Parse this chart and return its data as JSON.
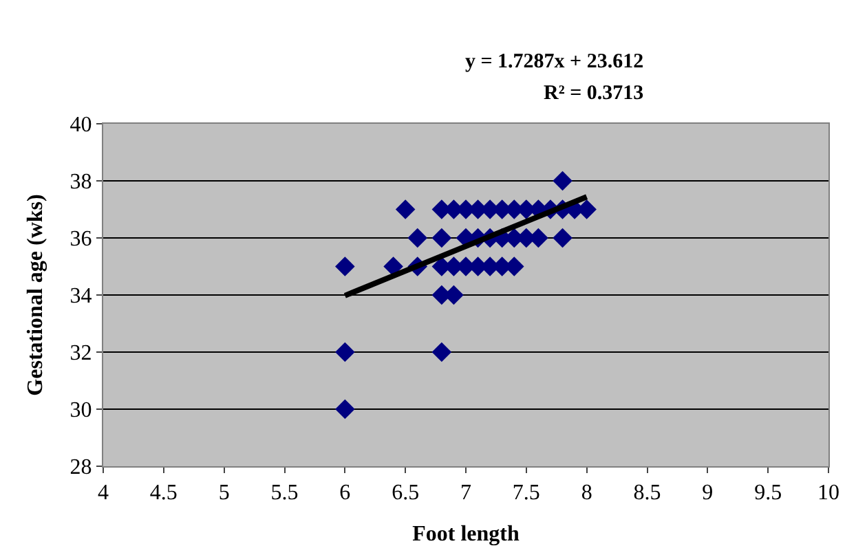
{
  "chart_data": {
    "type": "scatter",
    "xlabel": "Foot length",
    "ylabel": "Gestational age (wks)",
    "annotations": [
      "y = 1.7287x + 23.612",
      "R² = 0.3713"
    ],
    "xlim": [
      4,
      10
    ],
    "xticks": [
      4,
      4.5,
      5,
      5.5,
      6,
      6.5,
      7,
      7.5,
      8,
      8.5,
      9,
      9.5,
      10
    ],
    "ylim": [
      28,
      40
    ],
    "yticks": [
      28,
      30,
      32,
      34,
      36,
      38,
      40
    ],
    "grid": "y",
    "legend": false,
    "series": [
      {
        "color": "#000080",
        "marker": "diamond",
        "x": [
          7.8,
          6.5,
          6.8,
          6.9,
          7.0,
          7.1,
          7.2,
          7.3,
          7.4,
          7.5,
          7.6,
          7.7,
          7.8,
          7.9,
          8.0,
          6.6,
          6.8,
          7.0,
          7.1,
          7.2,
          7.3,
          7.4,
          7.5,
          7.6,
          7.8,
          6.0,
          6.4,
          6.6,
          6.8,
          6.9,
          7.0,
          7.1,
          7.2,
          7.3,
          7.4,
          6.8,
          6.9,
          6.0,
          6.8,
          6.0
        ],
        "values": [
          38,
          37,
          37,
          37,
          37,
          37,
          37,
          37,
          37,
          37,
          37,
          37,
          37,
          37,
          37,
          36,
          36,
          36,
          36,
          36,
          36,
          36,
          36,
          36,
          36,
          35,
          35,
          35,
          35,
          35,
          35,
          35,
          35,
          35,
          35,
          34,
          34,
          32,
          32,
          30
        ]
      },
      {
        "type": "line",
        "color": "#000000",
        "marker": "none",
        "line_style": "solid",
        "x": [
          6.0,
          8.0
        ],
        "values": [
          33.98,
          37.44
        ]
      }
    ]
  }
}
